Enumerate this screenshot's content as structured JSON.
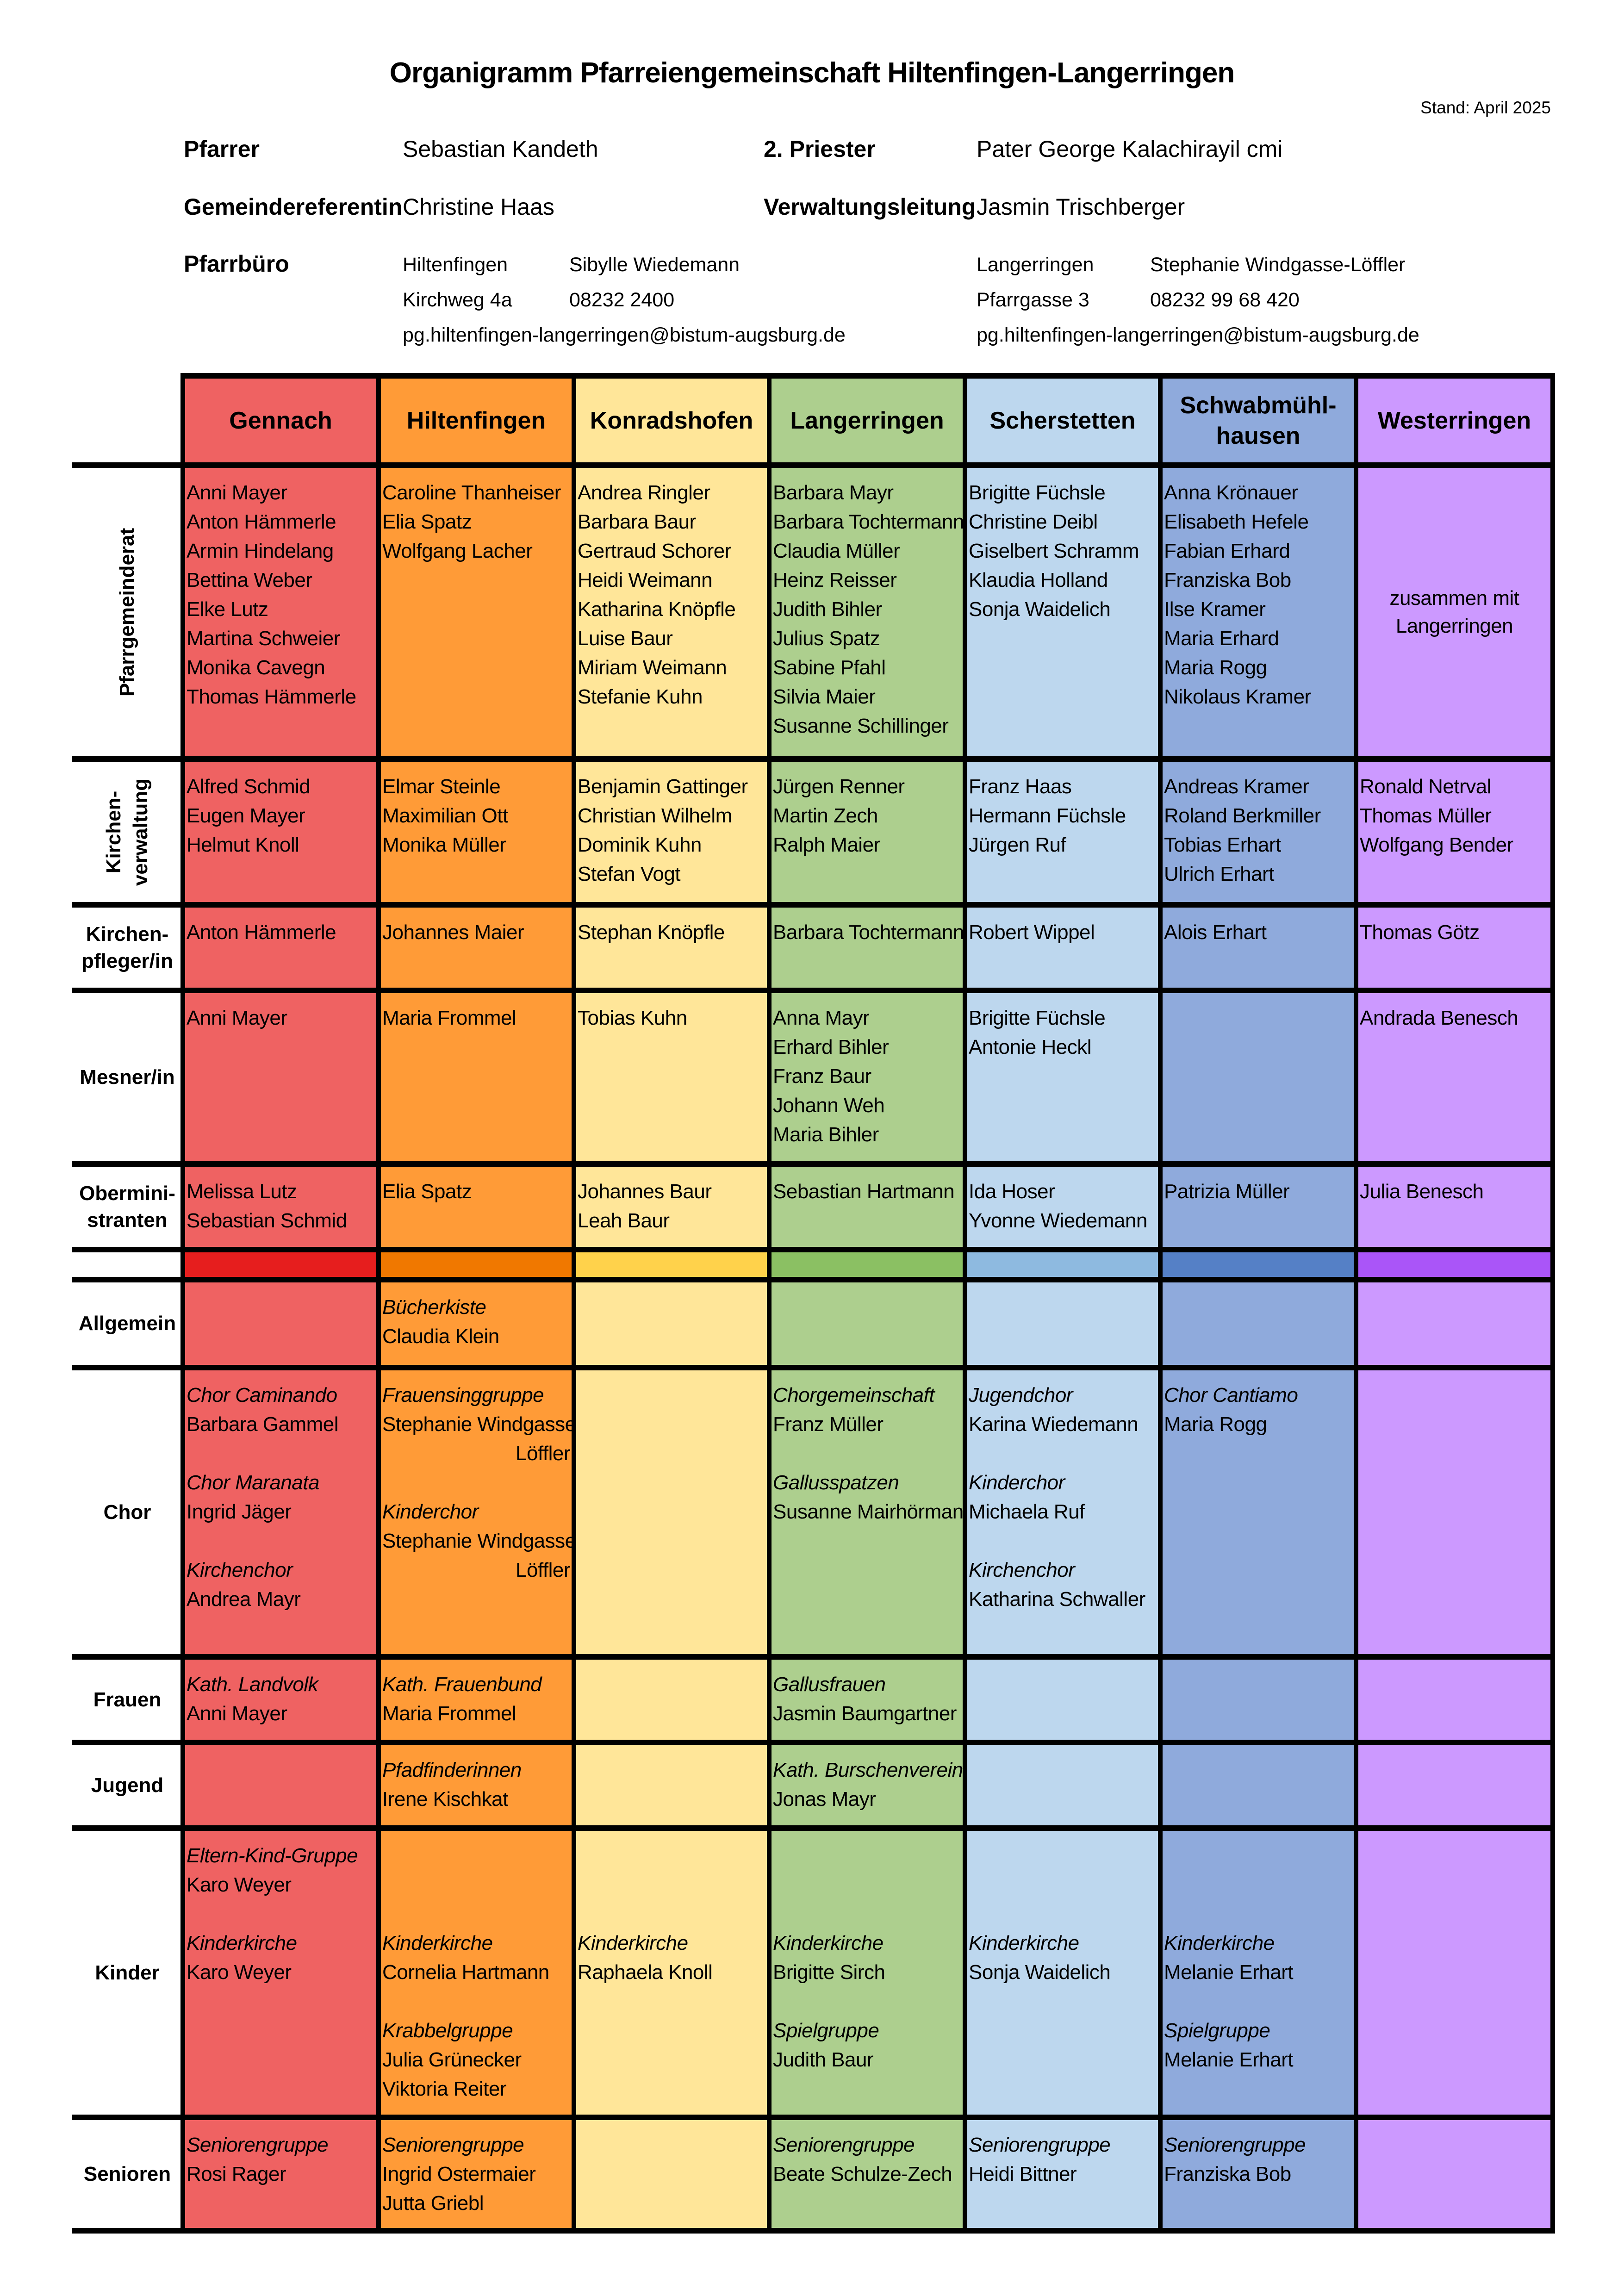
{
  "title": "Organigramm Pfarreiengemeinschaft Hiltenfingen-Langerringen",
  "stand": "Stand: April 2025",
  "staff": {
    "pfarrer_label": "Pfarrer",
    "pfarrer_name": "Sebastian Kandeth",
    "priester2_label": "2. Priester",
    "priester2_name": "Pater George Kalachirayil cmi",
    "gemref_label": "Gemeindereferentin",
    "gemref_name": "Christine Haas",
    "verwaltung_label": "Verwaltungsleitung",
    "verwaltung_name": "Jasmin Trischberger",
    "pfarrbuero_label": "Pfarrbüro"
  },
  "offices": [
    {
      "place": "Hiltenfingen",
      "person": "Sibylle Wiedemann",
      "street": "Kirchweg 4a",
      "phone": "08232 2400",
      "email": "pg.hiltenfingen-langerringen@bistum-augsburg.de"
    },
    {
      "place": "Langerringen",
      "person": "Stephanie Windgasse-Löffler",
      "street": "Pfarrgasse 3",
      "phone": "08232 99 68 420",
      "email": "pg.hiltenfingen-langerringen@bistum-augsburg.de"
    }
  ],
  "parishes": [
    {
      "name": "Gennach",
      "color": "#EF6262",
      "strip": "#E61E1E"
    },
    {
      "name": "Hiltenfingen",
      "color": "#FF9B37",
      "strip": "#F07800"
    },
    {
      "name": "Konradshofen",
      "color": "#FFE699",
      "strip": "#FFD24B"
    },
    {
      "name": "Langerringen",
      "color": "#ADCF8E",
      "strip": "#8BC063"
    },
    {
      "name": "Scherstetten",
      "color": "#BDD7EE",
      "strip": "#8EBAE0"
    },
    {
      "name": "Schwabmühl-hausen",
      "color": "#8FAADC",
      "strip": "#5580C6"
    },
    {
      "name": "Westerringen",
      "color": "#CC99FF",
      "strip": "#AA55F8"
    }
  ],
  "rows": [
    {
      "label": "Pfarrgemeinderat",
      "vertical": true,
      "cells": [
        [
          "Anni Mayer",
          "Anton Hämmerle",
          "Armin Hindelang",
          "Bettina Weber",
          "Elke Lutz",
          "Martina Schweier",
          "Monika Cavegn",
          "Thomas Hämmerle"
        ],
        [
          "Caroline Thanheiser",
          "Elia Spatz",
          "Wolfgang Lacher"
        ],
        [
          "Andrea Ringler",
          "Barbara Baur",
          "Gertraud Schorer",
          "Heidi Weimann",
          "Katharina Knöpfle",
          "Luise Baur",
          "Miriam Weimann",
          "Stefanie Kuhn"
        ],
        [
          "Barbara Mayr",
          "Barbara Tochtermann",
          "Claudia Müller",
          "Heinz Reisser",
          "Judith Bihler",
          "Julius Spatz",
          "Sabine Pfahl",
          "Silvia Maier",
          "Susanne Schillinger"
        ],
        [
          "Brigitte Füchsle",
          "Christine Deibl",
          "Giselbert Schramm",
          "Klaudia Holland",
          "Sonja Waidelich"
        ],
        [
          "Anna Krönauer",
          "Elisabeth Hefele",
          "Fabian Erhard",
          "Franziska Bob",
          "Ilse Kramer",
          "Maria Erhard",
          "Maria Rogg",
          "Nikolaus Kramer"
        ],
        [
          "zusammen mit Langerringen"
        ]
      ]
    },
    {
      "label": "Kirchen- verwaltung",
      "vertical": true,
      "cells": [
        [
          "Alfred Schmid",
          "Eugen Mayer",
          "Helmut Knoll"
        ],
        [
          "Elmar Steinle",
          "Maximilian Ott",
          "Monika Müller"
        ],
        [
          "Benjamin Gattinger",
          "Christian Wilhelm",
          "Dominik Kuhn",
          "Stefan Vogt"
        ],
        [
          "Jürgen Renner",
          "Martin Zech",
          "Ralph Maier"
        ],
        [
          "Franz Haas",
          "Hermann Füchsle",
          "Jürgen Ruf"
        ],
        [
          "Andreas Kramer",
          "Roland Berkmiller",
          "Tobias Erhart",
          "Ulrich Erhart"
        ],
        [
          "Ronald Netrval",
          "Thomas Müller",
          "Wolfgang Bender"
        ]
      ]
    },
    {
      "label": "Kirchen- pfleger/in",
      "vertical": false,
      "cells": [
        [
          "Anton Hämmerle"
        ],
        [
          "Johannes Maier"
        ],
        [
          "Stephan Knöpfle"
        ],
        [
          "Barbara Tochtermann"
        ],
        [
          "Robert Wippel"
        ],
        [
          "Alois Erhart"
        ],
        [
          "Thomas Götz"
        ]
      ]
    },
    {
      "label": "Mesner/in",
      "vertical": false,
      "cells": [
        [
          "Anni Mayer"
        ],
        [
          "Maria Frommel"
        ],
        [
          "Tobias Kuhn"
        ],
        [
          "Anna Mayr",
          "Erhard Bihler",
          "Franz Baur",
          "Johann Weh",
          "Maria Bihler"
        ],
        [
          "Brigitte Füchsle",
          "Antonie Heckl"
        ],
        [],
        [
          "Andrada Benesch"
        ]
      ]
    },
    {
      "label": "Obermini- stranten",
      "vertical": false,
      "cells": [
        [
          "Melissa Lutz",
          "Sebastian Schmid"
        ],
        [
          "Elia Spatz"
        ],
        [
          "Johannes Baur",
          "Leah Baur"
        ],
        [
          "Sebastian Hartmann"
        ],
        [
          "Ida Hoser",
          "Yvonne Wiedemann"
        ],
        [
          "Patrizia Müller"
        ],
        [
          "Julia Benesch"
        ]
      ]
    }
  ],
  "groups": [
    {
      "label": "Allgemein",
      "cells": [
        [],
        [
          {
            "group": "Bücherkiste",
            "people": [
              "Claudia Klein"
            ]
          }
        ],
        [],
        [],
        [],
        [],
        []
      ]
    },
    {
      "label": "Chor",
      "cells": [
        [
          {
            "group": "Chor Caminando",
            "people": [
              "Barbara Gammel"
            ]
          },
          {
            "group": "Chor Maranata",
            "people": [
              "Ingrid Jäger"
            ]
          },
          {
            "group": "Kirchenchor",
            "people": [
              "Andrea Mayr"
            ]
          }
        ],
        [
          {
            "group": "Frauensinggruppe",
            "people": [
              "Stephanie Windgasse-",
              "Löffler"
            ]
          },
          {
            "group": "Kinderchor",
            "people": [
              "Stephanie Windgasse-",
              "Löffler"
            ]
          }
        ],
        [],
        [
          {
            "group": "Chorgemeinschaft",
            "people": [
              "Franz Müller"
            ]
          },
          {
            "group": "Gallusspatzen",
            "people": [
              "Susanne Mairhörmann"
            ]
          }
        ],
        [
          {
            "group": "Jugendchor",
            "people": [
              "Karina Wiedemann"
            ]
          },
          {
            "group": "Kinderchor",
            "people": [
              "Michaela Ruf"
            ]
          },
          {
            "group": "Kirchenchor",
            "people": [
              "Katharina Schwaller"
            ]
          }
        ],
        [
          {
            "group": "Chor Cantiamo",
            "people": [
              "Maria Rogg"
            ]
          }
        ],
        []
      ]
    },
    {
      "label": "Frauen",
      "cells": [
        [
          {
            "group": "Kath. Landvolk",
            "people": [
              "Anni Mayer"
            ]
          }
        ],
        [
          {
            "group": "Kath. Frauenbund",
            "people": [
              "Maria Frommel"
            ]
          }
        ],
        [],
        [
          {
            "group": "Gallusfrauen",
            "people": [
              "Jasmin Baumgartner"
            ]
          }
        ],
        [],
        [],
        []
      ]
    },
    {
      "label": "Jugend",
      "cells": [
        [],
        [
          {
            "group": "Pfadfinderinnen",
            "people": [
              "Irene Kischkat"
            ]
          }
        ],
        [],
        [
          {
            "group": "Kath. Burschenverein",
            "people": [
              "Jonas Mayr"
            ]
          }
        ],
        [],
        [],
        []
      ]
    },
    {
      "label": "Kinder",
      "cells": [
        [
          {
            "group": "Eltern-Kind-Gruppe",
            "people": [
              "Karo Weyer"
            ]
          },
          {
            "group": "Kinderkirche",
            "people": [
              "Karo Weyer"
            ]
          }
        ],
        [
          {
            "group": "",
            "people": []
          },
          {
            "group": "Kinderkirche",
            "people": [
              "Cornelia Hartmann"
            ]
          },
          {
            "group": "Krabbelgruppe",
            "people": [
              "Julia Grünecker",
              "Viktoria Reiter"
            ]
          }
        ],
        [
          {
            "group": "",
            "people": []
          },
          {
            "group": "Kinderkirche",
            "people": [
              "Raphaela Knoll"
            ]
          }
        ],
        [
          {
            "group": "",
            "people": []
          },
          {
            "group": "Kinderkirche",
            "people": [
              "Brigitte Sirch"
            ]
          },
          {
            "group": "Spielgruppe",
            "people": [
              "Judith Baur"
            ]
          }
        ],
        [
          {
            "group": "",
            "people": []
          },
          {
            "group": "Kinderkirche",
            "people": [
              "Sonja Waidelich"
            ]
          }
        ],
        [
          {
            "group": "",
            "people": []
          },
          {
            "group": "Kinderkirche",
            "people": [
              "Melanie Erhart"
            ]
          },
          {
            "group": "Spielgruppe",
            "people": [
              "Melanie Erhart"
            ]
          }
        ],
        []
      ]
    },
    {
      "label": "Senioren",
      "cells": [
        [
          {
            "group": "Seniorengruppe",
            "people": [
              "Rosi Rager"
            ]
          }
        ],
        [
          {
            "group": "Seniorengruppe",
            "people": [
              "Ingrid Ostermaier",
              "Jutta Griebl"
            ]
          }
        ],
        [],
        [
          {
            "group": "Seniorengruppe",
            "people": [
              "Beate Schulze-Zech"
            ]
          }
        ],
        [
          {
            "group": "Seniorengruppe",
            "people": [
              "Heidi Bittner"
            ]
          }
        ],
        [
          {
            "group": "Seniorengruppe",
            "people": [
              "Franziska Bob"
            ]
          }
        ],
        []
      ]
    }
  ]
}
